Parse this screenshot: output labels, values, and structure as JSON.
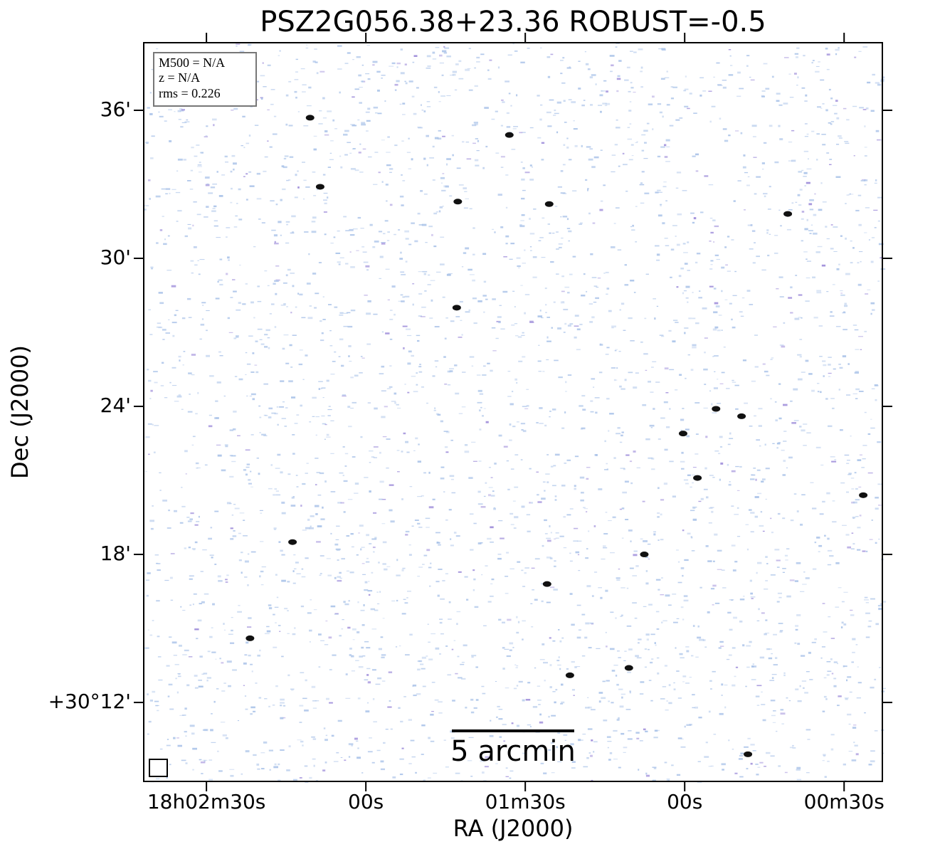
{
  "chart_data": {
    "type": "image",
    "title": "PSZ2G056.38+23.36 ROBUST=-0.5",
    "x_label": "RA (J2000)",
    "y_label": "Dec (J2000)",
    "xlim": [
      161.8,
      22.8
    ],
    "ylim": [
      8.8,
      38.74
    ],
    "xticks": [
      {
        "value": 150,
        "label": "18h02m30s"
      },
      {
        "value": 120,
        "label": "00s"
      },
      {
        "value": 90,
        "label": "01m30s"
      },
      {
        "value": 60,
        "label": "00s"
      },
      {
        "value": 30,
        "label": "00m30s"
      }
    ],
    "yticks": [
      {
        "value": 36,
        "label": "36'"
      },
      {
        "value": 30,
        "label": "30'"
      },
      {
        "value": 24,
        "label": "24'"
      },
      {
        "value": 18,
        "label": "18'"
      },
      {
        "value": 12,
        "label": "+30°12'"
      }
    ],
    "annotations": [
      "M500 = N/A",
      "z = N/A",
      "rms = 0.226"
    ],
    "scale_bar_label": "5 arcmin",
    "sources": {
      "color": "#111111",
      "x": [
        102.7,
        40.6,
        57.6,
        26.4,
        67.6,
        54.1,
        49.3,
        60.3,
        133.8,
        81.6,
        70.5,
        48.1,
        128.6,
        102.9,
        85.5,
        130.5,
        93.0,
        85.9,
        141.8
      ],
      "y": [
        32.3,
        31.8,
        21.1,
        20.4,
        18.0,
        23.9,
        23.6,
        22.9,
        18.5,
        13.1,
        13.4,
        9.9,
        32.9,
        28.0,
        32.2,
        35.7,
        35.0,
        16.8,
        14.6
      ]
    }
  }
}
